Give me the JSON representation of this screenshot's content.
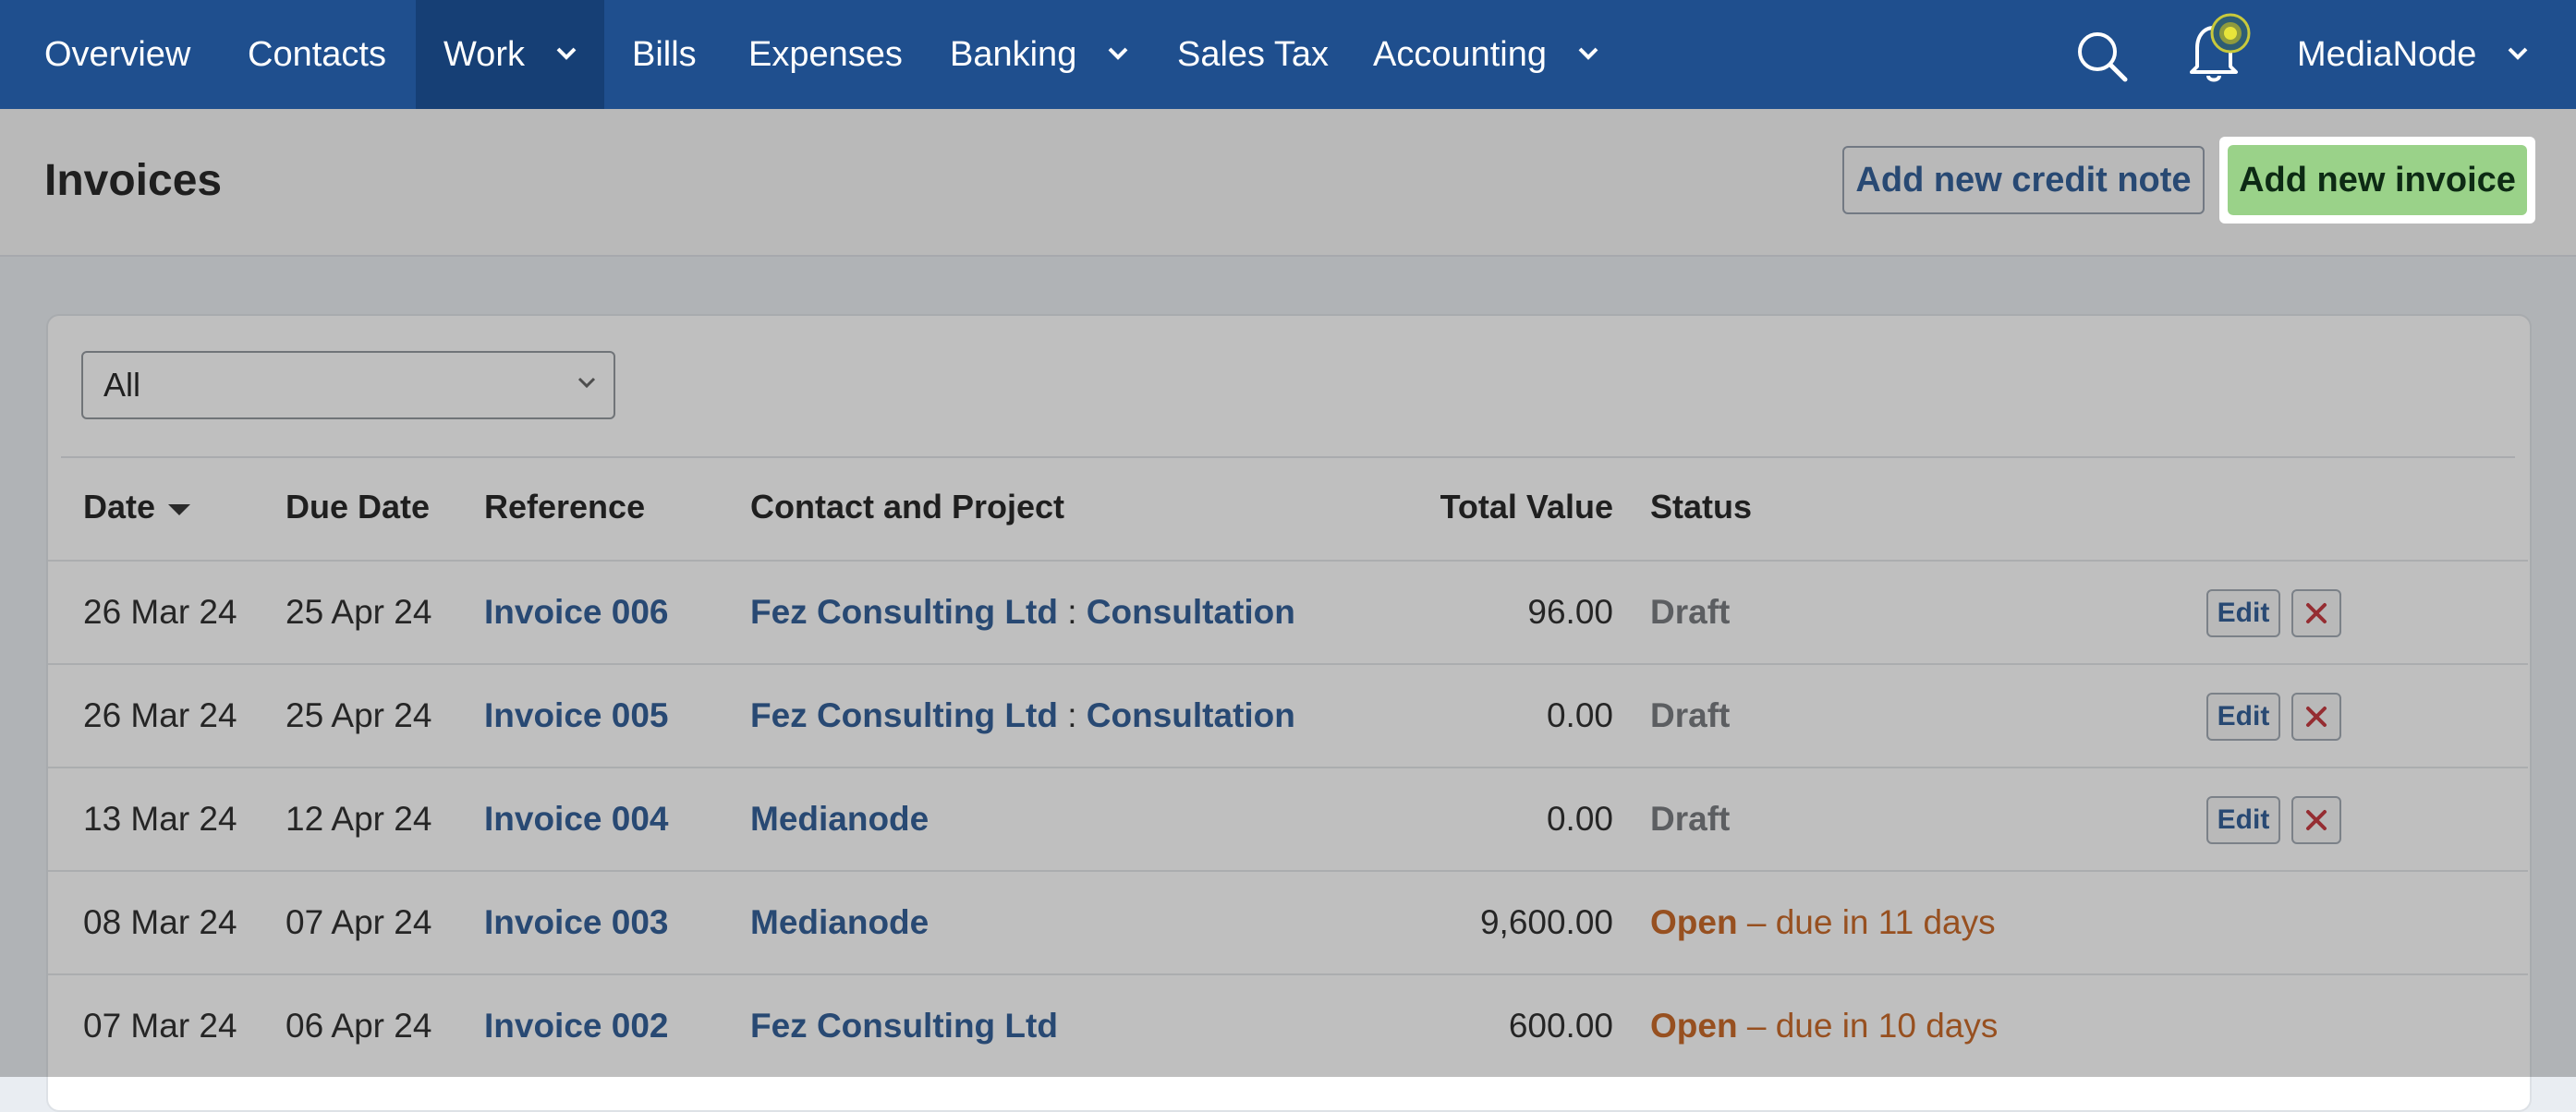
{
  "nav": {
    "items": [
      {
        "label": "Overview"
      },
      {
        "label": "Contacts"
      },
      {
        "label": "Work"
      },
      {
        "label": "Bills"
      },
      {
        "label": "Expenses"
      },
      {
        "label": "Banking"
      },
      {
        "label": "Sales Tax"
      },
      {
        "label": "Accounting"
      }
    ],
    "account_label": "MediaNode"
  },
  "header": {
    "title": "Invoices",
    "credit_note_button": "Add new credit note",
    "new_invoice_button": "Add new invoice"
  },
  "filter": {
    "selected": "All"
  },
  "table": {
    "headers": {
      "date": "Date",
      "due_date": "Due Date",
      "reference": "Reference",
      "contact": "Contact and Project",
      "total": "Total Value",
      "status": "Status"
    },
    "rows": [
      {
        "date": "26 Mar 24",
        "due": "25 Apr 24",
        "ref": "Invoice 006",
        "contact": "Fez Consulting Ltd",
        "project": "Consultation",
        "total": "96.00",
        "status": "Draft",
        "status_detail": ""
      },
      {
        "date": "26 Mar 24",
        "due": "25 Apr 24",
        "ref": "Invoice 005",
        "contact": "Fez Consulting Ltd",
        "project": "Consultation",
        "total": "0.00",
        "status": "Draft",
        "status_detail": ""
      },
      {
        "date": "13 Mar 24",
        "due": "12 Apr 24",
        "ref": "Invoice 004",
        "contact": "Medianode",
        "project": "",
        "total": "0.00",
        "status": "Draft",
        "status_detail": ""
      },
      {
        "date": "08 Mar 24",
        "due": "07 Apr 24",
        "ref": "Invoice 003",
        "contact": "Medianode",
        "project": "",
        "total": "9,600.00",
        "status": "Open",
        "status_detail": "– due in 11 days"
      },
      {
        "date": "07 Mar 24",
        "due": "06 Apr 24",
        "ref": "Invoice 002",
        "contact": "Fez Consulting Ltd",
        "project": "",
        "total": "600.00",
        "status": "Open",
        "status_detail": "– due in 10 days"
      }
    ],
    "edit_label": "Edit",
    "project_separator": ":"
  },
  "colors": {
    "nav_bg": "#1f4f8e",
    "primary_button": "#9ad289",
    "link": "#1f4f8e",
    "open_status": "#c35a12",
    "delete_icon": "#c0262d"
  }
}
